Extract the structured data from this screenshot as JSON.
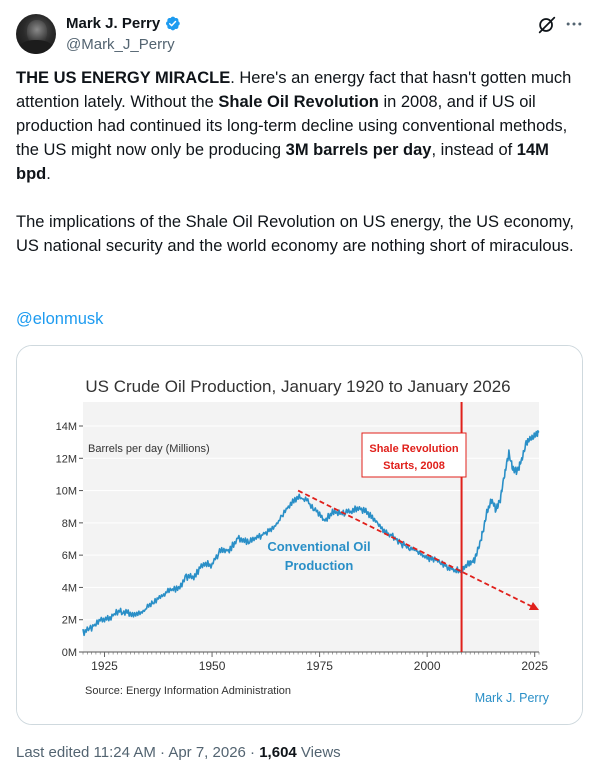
{
  "author": {
    "name": "Mark J. Perry",
    "handle": "@Mark_J_Perry",
    "verified_color": "#1d9bf0"
  },
  "icons": {
    "grok": "grok-icon",
    "more": "more-icon",
    "verified": "verified-badge-icon"
  },
  "tweet": {
    "p1": [
      {
        "t": "THE US ENERGY MIRACLE",
        "b": true
      },
      {
        "t": ". Here's an energy fact that hasn't gotten much attention lately. Without the ",
        "b": false
      },
      {
        "t": "Shale Oil Revolution",
        "b": true
      },
      {
        "t": " in 2008, and if US oil production had continued its long-term decline using conventional methods, the US might now only be producing ",
        "b": false
      },
      {
        "t": "3M barrels per day",
        "b": true
      },
      {
        "t": ", instead of ",
        "b": false
      },
      {
        "t": "14M bpd",
        "b": true
      },
      {
        "t": ".",
        "b": false
      }
    ],
    "p2": "The implications of the Shale Oil Revolution on US energy, the US economy, US national security and the world economy are nothing short of miraculous.",
    "mention": "@elonmusk"
  },
  "meta": {
    "edited": "Last edited 11:24 AM · Apr 7, 2026 · ",
    "views_count": "1,604",
    "views_label": " Views"
  },
  "chart_data": {
    "type": "line",
    "title": "US Crude Oil Production, January 1920 to January 2026",
    "ylabel": "Barrels per day (Millions)",
    "xlim": [
      1920,
      2026
    ],
    "ylim": [
      0,
      14
    ],
    "x_ticks": [
      "1925",
      "1950",
      "1975",
      "2000",
      "2025"
    ],
    "y_ticks": [
      "0M",
      "2M",
      "4M",
      "6M",
      "8M",
      "10M",
      "12M",
      "14M"
    ],
    "source": "Source: Energy Information Administration",
    "signature": "Mark J. Perry",
    "series_label": [
      "Conventional Oil",
      "Production"
    ],
    "annotation": [
      "Shale Revolution",
      "Starts, 2008"
    ],
    "shale_year": 2008,
    "colors": {
      "line": "#2a8fc7",
      "trend": "#e0201b",
      "marker": "#e0201b",
      "title": "#333333"
    },
    "trend": {
      "x": [
        1970,
        2026
      ],
      "y": [
        10.0,
        2.6
      ]
    },
    "series": [
      {
        "x": [
          1920,
          1922,
          1924,
          1926,
          1928,
          1930,
          1932,
          1934,
          1936,
          1938,
          1940,
          1942,
          1944,
          1946,
          1948,
          1950,
          1952,
          1954,
          1956,
          1958,
          1960,
          1962,
          1964,
          1966,
          1968,
          1970,
          1972,
          1974,
          1976,
          1978,
          1980,
          1982,
          1984,
          1986,
          1988,
          1990,
          1992,
          1994,
          1996,
          1998,
          2000,
          2002,
          2004,
          2006,
          2008,
          2009,
          2010,
          2011,
          2012,
          2013,
          2014,
          2015,
          2016,
          2017,
          2018,
          2019,
          2020,
          2021,
          2022,
          2023,
          2024,
          2025,
          2026
        ],
        "values": [
          1.2,
          1.5,
          2.0,
          2.1,
          2.5,
          2.5,
          2.3,
          2.5,
          3.0,
          3.4,
          3.8,
          3.9,
          4.6,
          4.7,
          5.5,
          5.4,
          6.3,
          6.3,
          7.1,
          6.8,
          7.0,
          7.3,
          7.6,
          8.3,
          9.1,
          9.6,
          9.4,
          8.8,
          8.1,
          8.7,
          8.6,
          8.7,
          8.9,
          8.7,
          8.1,
          7.4,
          7.2,
          6.7,
          6.5,
          6.2,
          5.8,
          5.7,
          5.4,
          5.1,
          5.0,
          5.4,
          5.5,
          5.7,
          6.5,
          7.5,
          8.8,
          9.4,
          8.8,
          9.4,
          11.0,
          12.3,
          11.3,
          11.2,
          11.9,
          12.9,
          13.2,
          13.5,
          13.6
        ]
      }
    ]
  }
}
